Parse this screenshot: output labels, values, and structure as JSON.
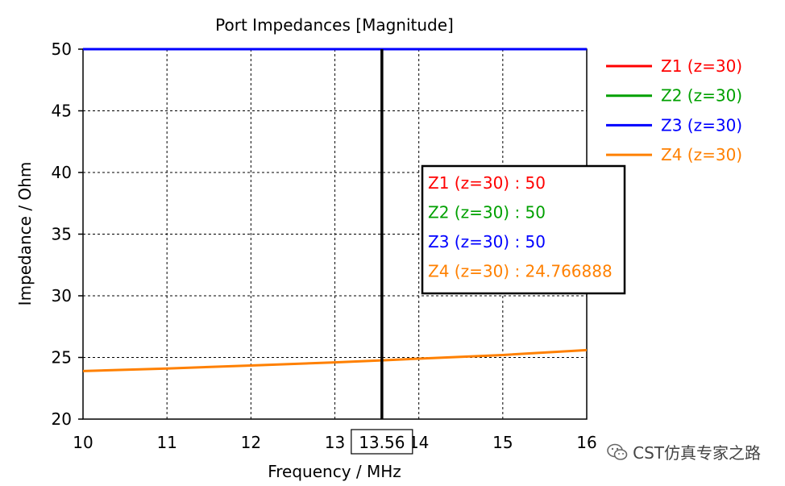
{
  "chart_data": {
    "type": "line",
    "title": "Port Impedances [Magnitude]",
    "xlabel": "Frequency / MHz",
    "ylabel": "Impedance / Ohm",
    "xlim": [
      10,
      16
    ],
    "ylim": [
      20,
      50
    ],
    "xticks": [
      "10",
      "11",
      "12",
      "13",
      "14",
      "15",
      "16"
    ],
    "yticks": [
      "20",
      "25",
      "30",
      "35",
      "40",
      "45",
      "50"
    ],
    "grid": true,
    "legend_position": "right",
    "series": [
      {
        "name": "Z1 (z=30)",
        "color": "#ff0000",
        "x": [
          10,
          16
        ],
        "y": [
          50,
          50
        ]
      },
      {
        "name": "Z2 (z=30)",
        "color": "#00a000",
        "x": [
          10,
          16
        ],
        "y": [
          50,
          50
        ]
      },
      {
        "name": "Z3 (z=30)",
        "color": "#0000ff",
        "x": [
          10,
          16
        ],
        "y": [
          50,
          50
        ]
      },
      {
        "name": "Z4 (z=30)",
        "color": "#ff8000",
        "x": [
          10,
          11,
          12,
          13,
          13.56,
          14,
          15,
          16
        ],
        "y": [
          23.9,
          24.1,
          24.35,
          24.6,
          24.766888,
          24.9,
          25.2,
          25.6
        ]
      }
    ],
    "marker": {
      "x": 13.56,
      "x_label": "13.56",
      "readout": [
        {
          "text": "Z1 (z=30) : 50",
          "color": "#ff0000"
        },
        {
          "text": "Z2 (z=30) : 50",
          "color": "#00a000"
        },
        {
          "text": "Z3 (z=30) : 50",
          "color": "#0000ff"
        },
        {
          "text": "Z4 (z=30) : 24.766888",
          "color": "#ff8000"
        }
      ]
    }
  },
  "watermark": {
    "text": "CST仿真专家之路"
  }
}
